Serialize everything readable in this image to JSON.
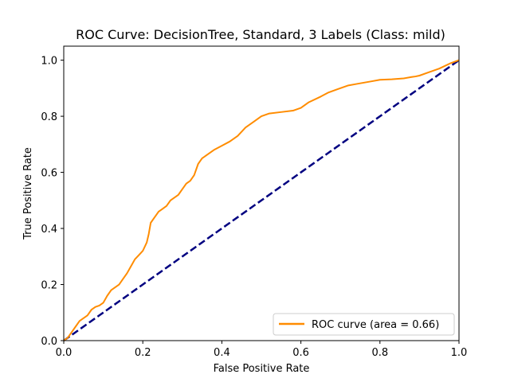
{
  "chart_data": {
    "type": "line",
    "title": "ROC Curve: DecisionTree, Standard, 3 Labels (Class: mild)",
    "xlabel": "False Positive Rate",
    "ylabel": "True Positive Rate",
    "xlim": [
      0.0,
      1.0
    ],
    "ylim": [
      0.0,
      1.05
    ],
    "x_ticks": [
      0.0,
      0.2,
      0.4,
      0.6,
      0.8,
      1.0
    ],
    "y_ticks": [
      0.0,
      0.2,
      0.4,
      0.6,
      0.8,
      1.0
    ],
    "x_tick_labels": [
      "0.0",
      "0.2",
      "0.4",
      "0.6",
      "0.8",
      "1.0"
    ],
    "y_tick_labels": [
      "0.0",
      "0.2",
      "0.4",
      "0.6",
      "0.8",
      "1.0"
    ],
    "grid": false,
    "legend_position": "lower right",
    "series": [
      {
        "name": "ROC curve (area = 0.66)",
        "color": "#ff8c00",
        "line_style": "solid",
        "x": [
          0.0,
          0.01,
          0.02,
          0.03,
          0.04,
          0.05,
          0.06,
          0.07,
          0.08,
          0.09,
          0.1,
          0.11,
          0.12,
          0.13,
          0.14,
          0.15,
          0.16,
          0.17,
          0.18,
          0.19,
          0.2,
          0.21,
          0.215,
          0.22,
          0.23,
          0.24,
          0.25,
          0.26,
          0.27,
          0.28,
          0.29,
          0.3,
          0.31,
          0.32,
          0.33,
          0.34,
          0.345,
          0.35,
          0.36,
          0.38,
          0.4,
          0.42,
          0.44,
          0.46,
          0.48,
          0.5,
          0.52,
          0.55,
          0.58,
          0.6,
          0.62,
          0.65,
          0.67,
          0.69,
          0.7,
          0.72,
          0.74,
          0.76,
          0.78,
          0.8,
          0.83,
          0.86,
          0.88,
          0.89,
          0.9,
          0.92,
          0.95,
          0.98,
          1.0
        ],
        "y": [
          0.0,
          0.01,
          0.03,
          0.05,
          0.07,
          0.08,
          0.09,
          0.11,
          0.12,
          0.125,
          0.135,
          0.16,
          0.18,
          0.19,
          0.2,
          0.22,
          0.24,
          0.265,
          0.29,
          0.305,
          0.32,
          0.35,
          0.38,
          0.42,
          0.44,
          0.46,
          0.47,
          0.48,
          0.5,
          0.51,
          0.52,
          0.54,
          0.56,
          0.57,
          0.59,
          0.63,
          0.64,
          0.65,
          0.66,
          0.68,
          0.695,
          0.71,
          0.73,
          0.76,
          0.78,
          0.8,
          0.81,
          0.815,
          0.82,
          0.83,
          0.85,
          0.87,
          0.885,
          0.895,
          0.9,
          0.91,
          0.915,
          0.92,
          0.925,
          0.93,
          0.932,
          0.935,
          0.94,
          0.942,
          0.945,
          0.955,
          0.97,
          0.99,
          1.0
        ]
      },
      {
        "name": "",
        "color": "#000080",
        "line_style": "dashed",
        "x": [
          0.0,
          1.0
        ],
        "y": [
          0.0,
          1.0
        ]
      }
    ]
  }
}
